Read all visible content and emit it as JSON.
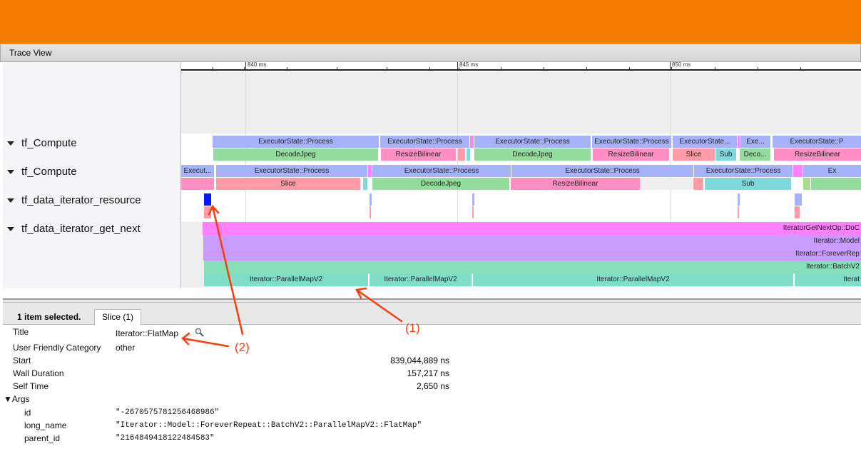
{
  "app": {
    "title": "Trace View",
    "accent": "#f57c00"
  },
  "ruler": {
    "ticks": [
      "840 ms",
      "845 ms",
      "850 ms"
    ]
  },
  "tracks": [
    {
      "name": "tf_Compute",
      "slices": [
        "ExecutorState::Process",
        "ExecutorState::Process",
        "",
        "ExecutorState::Process",
        "ExecutorState::Process",
        "ExecutorState...",
        "",
        "Exe...",
        "ExecutorState::P",
        "DecodeJpeg",
        "ResizeBilinear",
        "",
        "",
        "DecodeJpeg",
        "ResizeBilinear",
        "Slice",
        "Sub",
        "Deco...",
        "ResizeBilinear"
      ]
    },
    {
      "name": "tf_Compute",
      "slices": [
        "Execut...",
        "ExecutorState::Process",
        "",
        "ExecutorState::Process",
        "ExecutorState::Process",
        "ExecutorState::Process",
        "",
        "Ex",
        "",
        "Slice",
        "",
        "DecodeJpeg",
        "ResizeBilinear",
        "",
        "",
        "Sub",
        "",
        ""
      ]
    },
    {
      "name": "tf_data_iterator_resource",
      "slices": []
    },
    {
      "name": "tf_data_iterator_get_next",
      "slices": [
        "IteratorGetNextOp::DoC",
        "Iterator::Model",
        "Iterator::ForeverRep",
        "Iterator::BatchV2",
        "Iterator::ParallelMapV2",
        "Iterator::ParallelMapV2",
        "Iterator::ParallelMapV2",
        "Iterat"
      ]
    }
  ],
  "details": {
    "selected": "1 item selected.",
    "tab": "Slice (1)",
    "rows": [
      {
        "key": "Title",
        "value": "Iterator::FlatMap"
      },
      {
        "key": "User Friendly Category",
        "value": "other"
      },
      {
        "key": "Start",
        "value": "839,044,889 ns"
      },
      {
        "key": "Wall Duration",
        "value": "157,217 ns"
      },
      {
        "key": "Self Time",
        "value": "2,650 ns"
      }
    ],
    "args_label": "▼Args",
    "args": [
      {
        "key": "id",
        "value": "\"-2670575781256468986\""
      },
      {
        "key": "long_name",
        "value": "\"Iterator::Model::ForeverRepeat::BatchV2::ParallelMapV2::FlatMap\""
      },
      {
        "key": "parent_id",
        "value": "\"2164849418122484583\""
      }
    ]
  },
  "annotations": [
    "(1)",
    "(2)"
  ]
}
